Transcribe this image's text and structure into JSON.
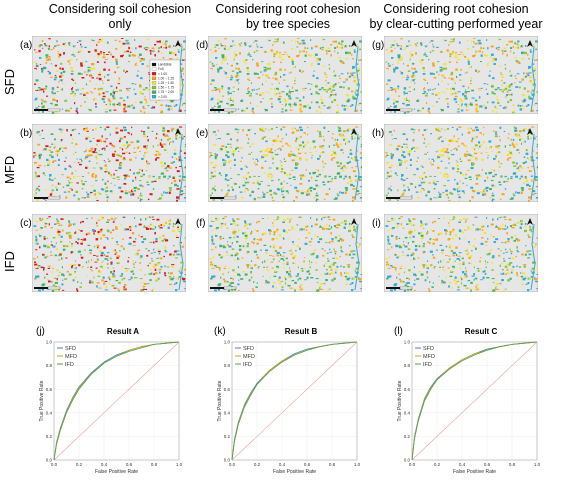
{
  "columns": [
    {
      "title_line1": "Considering soil cohesion",
      "title_line2": "only"
    },
    {
      "title_line1": "Considering root cohesion",
      "title_line2": "by tree species"
    },
    {
      "title_line1": "Considering root cohesion",
      "title_line2": "by clear-cutting performed year"
    }
  ],
  "rows": [
    "SFD",
    "MFD",
    "IFD"
  ],
  "panel_letters": [
    "(a)",
    "(b)",
    "(c)",
    "(d)",
    "(e)",
    "(f)",
    "(g)",
    "(h)",
    "(i)",
    "(j)",
    "(k)",
    "(l)"
  ],
  "map_legend": {
    "items": [
      {
        "label": "Landslide",
        "color": "#111111"
      },
      {
        "label": "FoS",
        "color": "#ffffff"
      },
      {
        "label": "< 1.00",
        "color": "#d7191c"
      },
      {
        "label": "1.00 ~ 1.25",
        "color": "#f4a620"
      },
      {
        "label": "1.25 ~ 1.50",
        "color": "#f2e33b"
      },
      {
        "label": "1.50 ~ 1.75",
        "color": "#8cc63f"
      },
      {
        "label": "1.75 ~ 2.00",
        "color": "#3fb36c"
      },
      {
        "label": "> 2.00",
        "color": "#36a8d8"
      }
    ]
  },
  "colors": {
    "red": "#d7191c",
    "orange": "#f4a620",
    "yellow": "#f2e33b",
    "lightgreen": "#8cc63f",
    "green": "#3fb36c",
    "blue": "#36a8d8",
    "terrain": "#e6e6e6",
    "diagonal": "#e8a0a0"
  },
  "roc_axis": {
    "xlabel": "False Positive Rate",
    "ylabel": "True Positive Rate",
    "xticks": [
      "0.0",
      "0.2",
      "0.4",
      "0.6",
      "0.8",
      "1.0"
    ],
    "yticks": [
      "0.0",
      "0.2",
      "0.4",
      "0.6",
      "0.8",
      "1.0"
    ]
  },
  "chart_data": [
    {
      "type": "line",
      "title": "Result A",
      "xlabel": "False Positive Rate",
      "ylabel": "True Positive Rate",
      "xlim": [
        0,
        1
      ],
      "ylim": [
        0,
        1
      ],
      "grid": true,
      "legend": "top-left",
      "x": [
        0,
        0.02,
        0.05,
        0.1,
        0.15,
        0.2,
        0.3,
        0.4,
        0.5,
        0.6,
        0.7,
        0.8,
        0.9,
        1.0
      ],
      "series": [
        {
          "name": "SFD",
          "color": "#4a7fb5",
          "values": [
            0,
            0.15,
            0.27,
            0.42,
            0.53,
            0.62,
            0.74,
            0.83,
            0.89,
            0.93,
            0.96,
            0.98,
            0.99,
            1.0
          ]
        },
        {
          "name": "MFD",
          "color": "#c9a227",
          "values": [
            0,
            0.14,
            0.26,
            0.41,
            0.52,
            0.61,
            0.73,
            0.82,
            0.88,
            0.93,
            0.96,
            0.98,
            0.99,
            1.0
          ]
        },
        {
          "name": "IFD",
          "color": "#5a9e4b",
          "values": [
            0,
            0.13,
            0.25,
            0.4,
            0.51,
            0.6,
            0.73,
            0.82,
            0.88,
            0.92,
            0.95,
            0.98,
            0.99,
            1.0
          ]
        }
      ]
    },
    {
      "type": "line",
      "title": "Result B",
      "xlabel": "False Positive Rate",
      "ylabel": "True Positive Rate",
      "xlim": [
        0,
        1
      ],
      "ylim": [
        0,
        1
      ],
      "grid": true,
      "legend": "top-left",
      "x": [
        0,
        0.02,
        0.05,
        0.1,
        0.15,
        0.2,
        0.3,
        0.4,
        0.5,
        0.6,
        0.7,
        0.8,
        0.9,
        1.0
      ],
      "series": [
        {
          "name": "SFD",
          "color": "#4a7fb5",
          "values": [
            0,
            0.18,
            0.32,
            0.47,
            0.57,
            0.65,
            0.76,
            0.84,
            0.9,
            0.94,
            0.96,
            0.98,
            0.99,
            1.0
          ]
        },
        {
          "name": "MFD",
          "color": "#c9a227",
          "values": [
            0,
            0.17,
            0.31,
            0.46,
            0.56,
            0.64,
            0.76,
            0.84,
            0.89,
            0.93,
            0.96,
            0.98,
            0.99,
            1.0
          ]
        },
        {
          "name": "IFD",
          "color": "#5a9e4b",
          "values": [
            0,
            0.16,
            0.3,
            0.45,
            0.55,
            0.64,
            0.75,
            0.83,
            0.89,
            0.93,
            0.96,
            0.98,
            0.99,
            1.0
          ]
        }
      ]
    },
    {
      "type": "line",
      "title": "Result C",
      "xlabel": "False Positive Rate",
      "ylabel": "True Positive Rate",
      "xlim": [
        0,
        1
      ],
      "ylim": [
        0,
        1
      ],
      "grid": true,
      "legend": "top-left",
      "x": [
        0,
        0.02,
        0.05,
        0.1,
        0.15,
        0.2,
        0.3,
        0.4,
        0.5,
        0.6,
        0.7,
        0.8,
        0.9,
        1.0
      ],
      "series": [
        {
          "name": "SFD",
          "color": "#4a7fb5",
          "values": [
            0,
            0.2,
            0.35,
            0.52,
            0.62,
            0.69,
            0.78,
            0.85,
            0.9,
            0.94,
            0.96,
            0.98,
            0.99,
            1.0
          ]
        },
        {
          "name": "MFD",
          "color": "#c9a227",
          "values": [
            0,
            0.19,
            0.34,
            0.51,
            0.61,
            0.68,
            0.78,
            0.85,
            0.9,
            0.93,
            0.96,
            0.98,
            0.99,
            1.0
          ]
        },
        {
          "name": "IFD",
          "color": "#5a9e4b",
          "values": [
            0,
            0.18,
            0.33,
            0.5,
            0.6,
            0.68,
            0.77,
            0.84,
            0.89,
            0.93,
            0.96,
            0.98,
            0.99,
            1.0
          ]
        }
      ]
    }
  ]
}
